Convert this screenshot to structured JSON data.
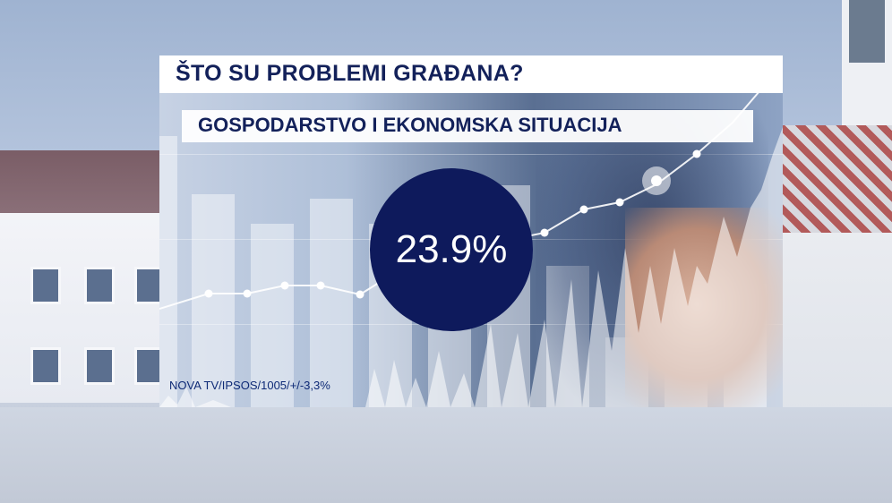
{
  "header": {
    "title": "ŠTO SU PROBLEMI GRAĐANA?"
  },
  "panel": {
    "subtitle": "GOSPODARSTVO I EKONOMSKA SITUACIJA",
    "value": "23.9%",
    "source": "NOVA TV/IPSOS/1005/+/-3,3%"
  },
  "colors": {
    "accent_navy": "#0e1a5c",
    "title_text": "#13215a",
    "source_text": "#0e2a76",
    "panel_white": "#ffffff"
  }
}
